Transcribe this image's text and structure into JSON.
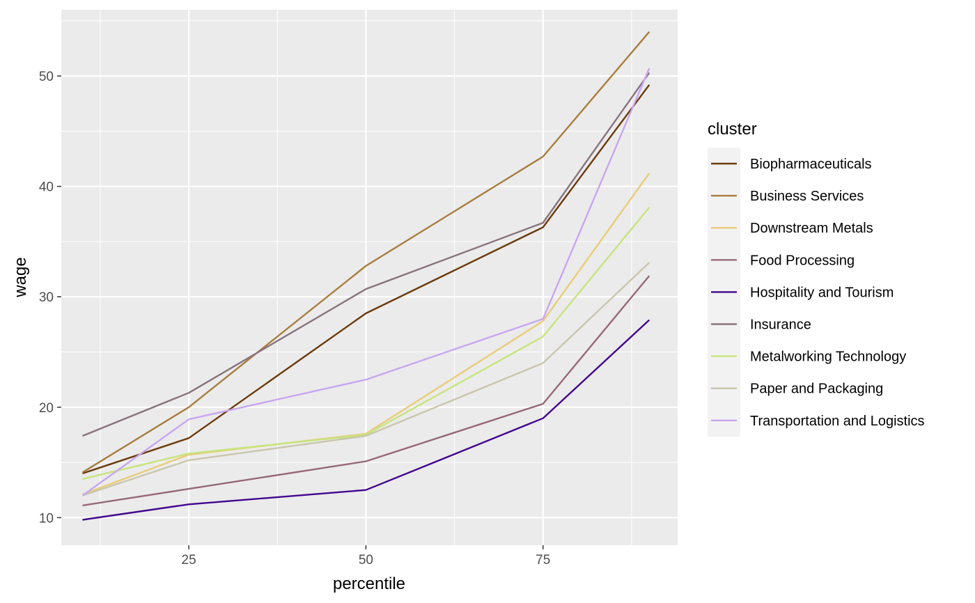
{
  "chart_data": {
    "type": "line",
    "xlabel": "percentile",
    "ylabel": "wage",
    "x": [
      10,
      25,
      50,
      75,
      90
    ],
    "xlim": [
      7,
      94
    ],
    "ylim": [
      7.5,
      56
    ],
    "x_ticks": [
      25,
      50,
      75
    ],
    "y_ticks": [
      10,
      20,
      30,
      40,
      50
    ],
    "grid": true,
    "panel_background": "#ebebeb",
    "legend_title": "cluster",
    "legend_position": "right",
    "series": [
      {
        "name": "Biopharmaceuticals",
        "color": "#6b3a0a",
        "values": [
          14.0,
          17.2,
          28.5,
          36.3,
          49.2
        ]
      },
      {
        "name": "Business Services",
        "color": "#a77d3e",
        "values": [
          14.1,
          20.0,
          32.8,
          42.7,
          54.0
        ]
      },
      {
        "name": "Downstream Metals",
        "color": "#e8cc78",
        "values": [
          12.1,
          15.7,
          17.6,
          27.8,
          41.2
        ]
      },
      {
        "name": "Food Processing",
        "color": "#966878",
        "values": [
          11.1,
          12.6,
          15.1,
          20.3,
          31.9
        ]
      },
      {
        "name": "Hospitality and Tourism",
        "color": "#42068e",
        "values": [
          9.8,
          11.2,
          12.5,
          19.0,
          27.9
        ]
      },
      {
        "name": "Insurance",
        "color": "#87737d",
        "values": [
          17.4,
          21.3,
          30.7,
          36.7,
          50.3
        ]
      },
      {
        "name": "Metalworking Technology",
        "color": "#c8e47c",
        "values": [
          13.5,
          15.8,
          17.5,
          26.4,
          38.1
        ]
      },
      {
        "name": "Paper and Packaging",
        "color": "#c9c6ac",
        "values": [
          12.0,
          15.2,
          17.4,
          24.0,
          33.1
        ]
      },
      {
        "name": "Transportation and Logistics",
        "color": "#c7a6f0",
        "values": [
          12.0,
          18.9,
          22.5,
          28.0,
          50.7
        ]
      }
    ]
  }
}
